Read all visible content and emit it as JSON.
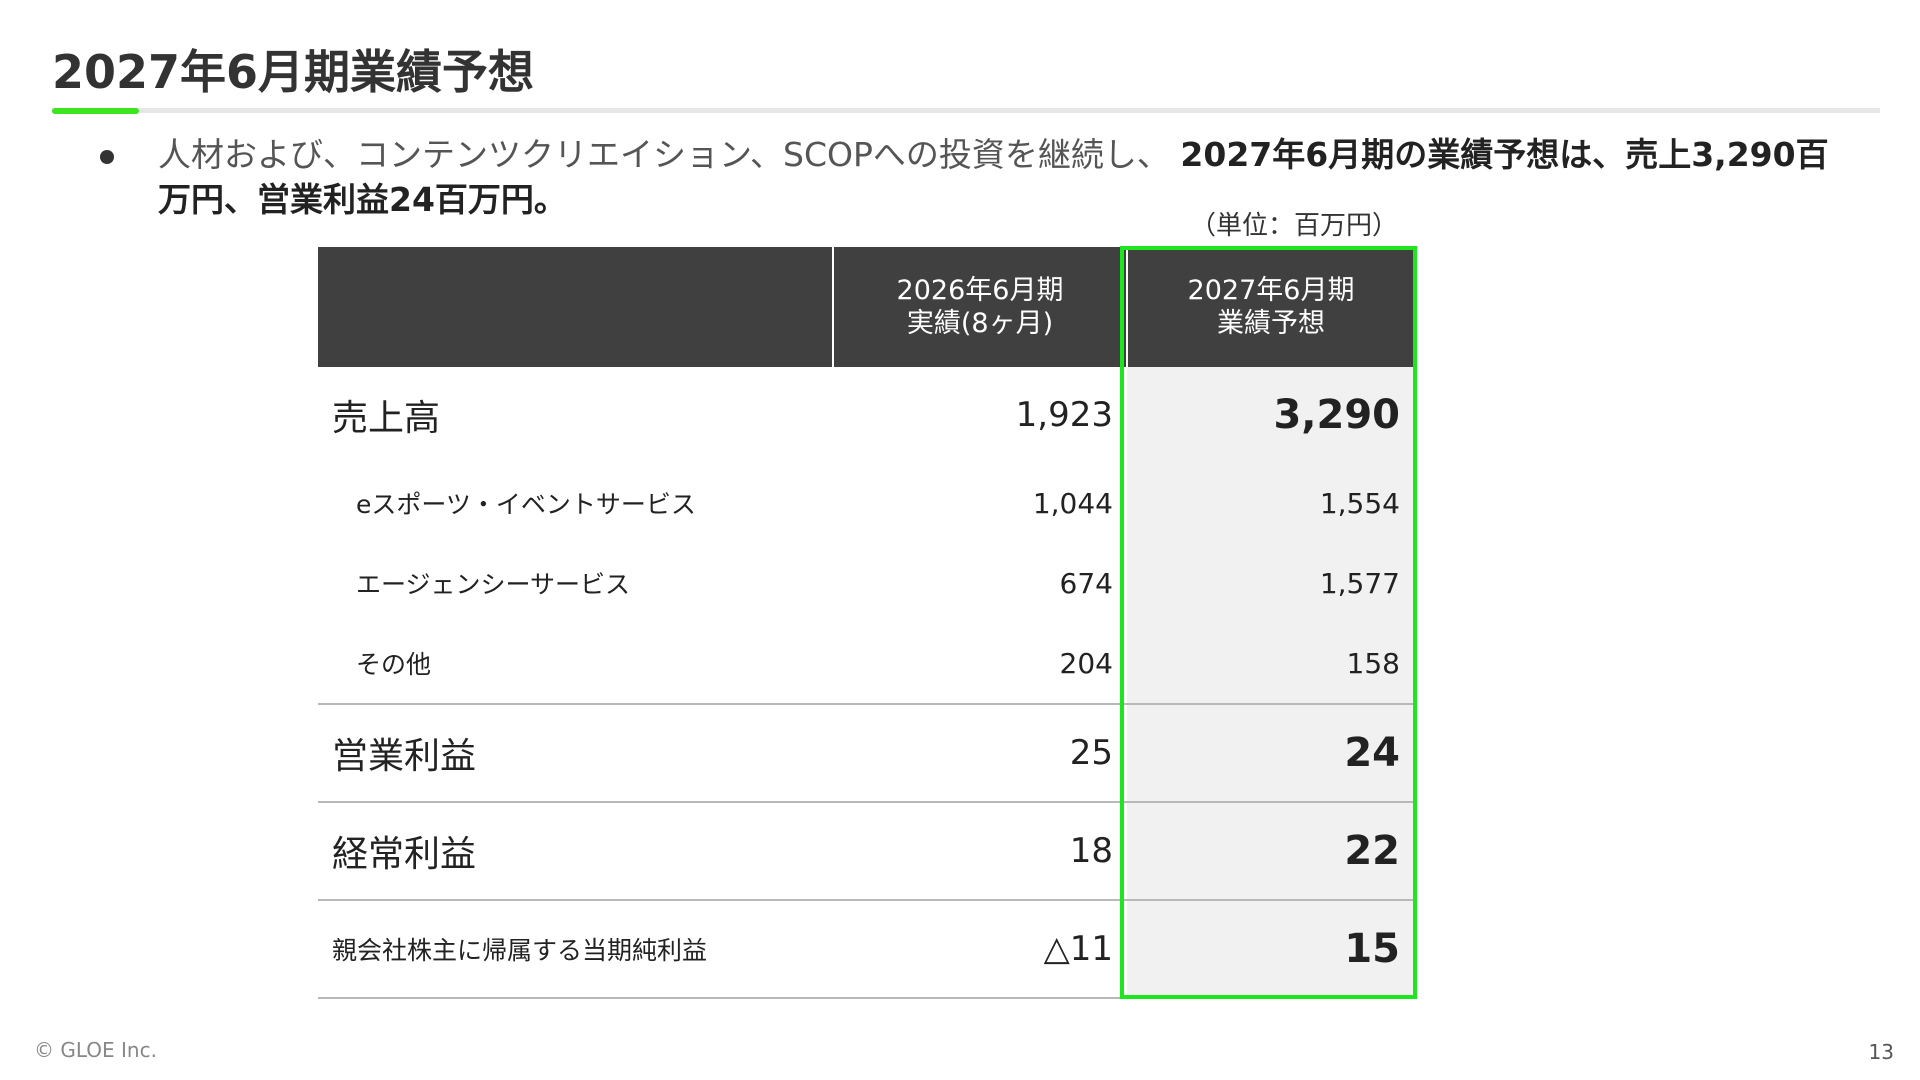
{
  "slide": {
    "title": "2027年6月期業績予想",
    "summary_lead": "人材および、コンテンツクリエイション、SCOPへの投資を継続し、",
    "summary_emphasis": "2027年6月期の業績予想は、売上3,290百万円、営業利益24百万円。",
    "unit_note": "（単位：百万円）",
    "page_number": "13",
    "copyright": "© GLOE Inc.",
    "colors": {
      "accent_green": "#3be61f",
      "header_dark": "#404040",
      "forecast_bg": "#f1f1f1"
    }
  },
  "table": {
    "columns": [
      {
        "line1": "",
        "line2": ""
      },
      {
        "line1": "2026年6月期",
        "line2": "実績(8ヶ月)"
      },
      {
        "line1": "2027年6月期",
        "line2": "業績予想"
      }
    ],
    "rows": [
      {
        "label": "売上高",
        "prev": "1,923",
        "forecast": "3,290"
      },
      {
        "label": "eスポーツ・イベントサービス",
        "prev": "1,044",
        "forecast": "1,554"
      },
      {
        "label": "エージェンシーサービス",
        "prev": "674",
        "forecast": "1,577"
      },
      {
        "label": "その他",
        "prev": "204",
        "forecast": "158"
      },
      {
        "label": "営業利益",
        "prev": "25",
        "forecast": "24"
      },
      {
        "label": "経常利益",
        "prev": "18",
        "forecast": "22"
      },
      {
        "label": "親会社株主に帰属する当期純利益",
        "prev": "△11",
        "forecast": "15"
      }
    ]
  }
}
